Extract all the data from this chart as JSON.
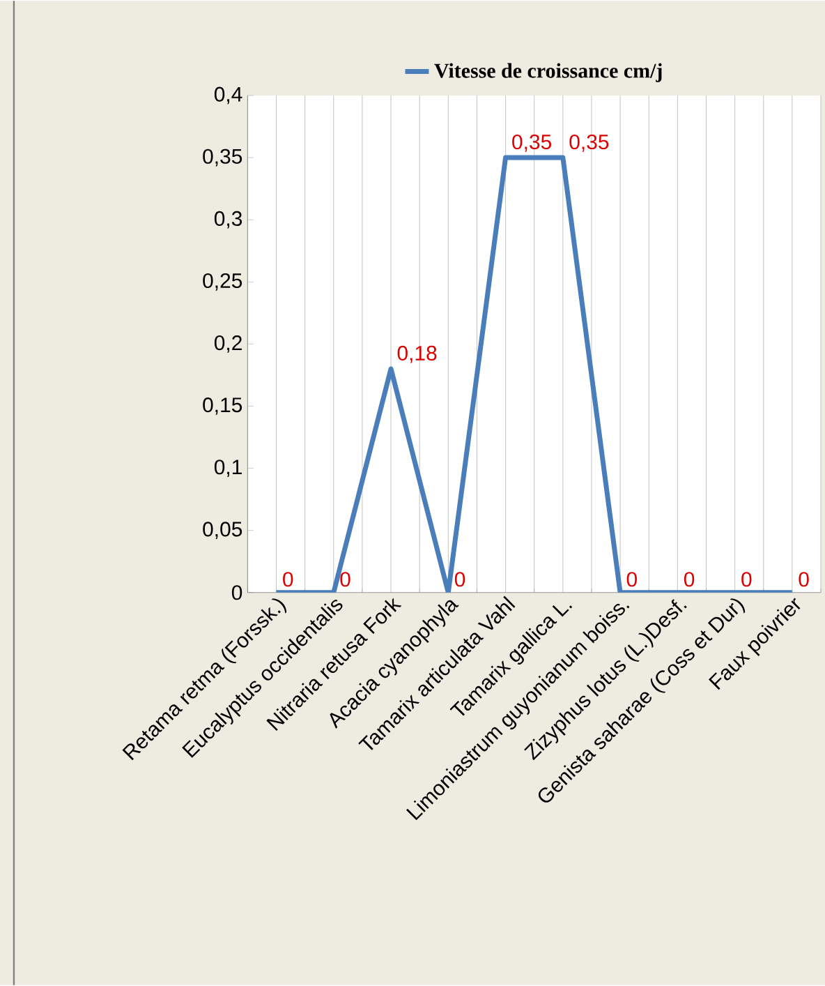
{
  "chart_data": {
    "type": "line",
    "categories": [
      "Retama retma (Forssk.)",
      "Eucalyptus occidentalis",
      "Nitraria retusa Fork",
      "Acacia cyanophyla",
      "Tamarix articulata Vahl",
      "Tamarix gallica L.",
      "Limoniastrum guyonianum boiss.",
      "Zizyphus lotus (L.)Desf.",
      "Genista saharae (Coss et Dur)",
      "Faux poivrier"
    ],
    "series": [
      {
        "name": "Vitesse de croissance cm/j",
        "color": "#4a7ebb",
        "values": [
          0,
          0,
          0.18,
          0,
          0.35,
          0.35,
          0,
          0,
          0,
          0
        ],
        "value_labels": [
          "0",
          "0",
          "0,18",
          "0",
          "0,35",
          "0,35",
          "0",
          "0",
          "0",
          "0"
        ]
      }
    ],
    "ylim": [
      0,
      0.4
    ],
    "yticks": [
      {
        "value": 0,
        "label": "0"
      },
      {
        "value": 0.05,
        "label": "0,05"
      },
      {
        "value": 0.1,
        "label": "0,1"
      },
      {
        "value": 0.15,
        "label": "0,15"
      },
      {
        "value": 0.2,
        "label": "0,2"
      },
      {
        "value": 0.25,
        "label": "0,25"
      },
      {
        "value": 0.3,
        "label": "0,3"
      },
      {
        "value": 0.35,
        "label": "0,35"
      },
      {
        "value": 0.4,
        "label": "0,4"
      }
    ],
    "grid": "x",
    "legend": "top",
    "marker": "none",
    "line_style": "solid"
  }
}
